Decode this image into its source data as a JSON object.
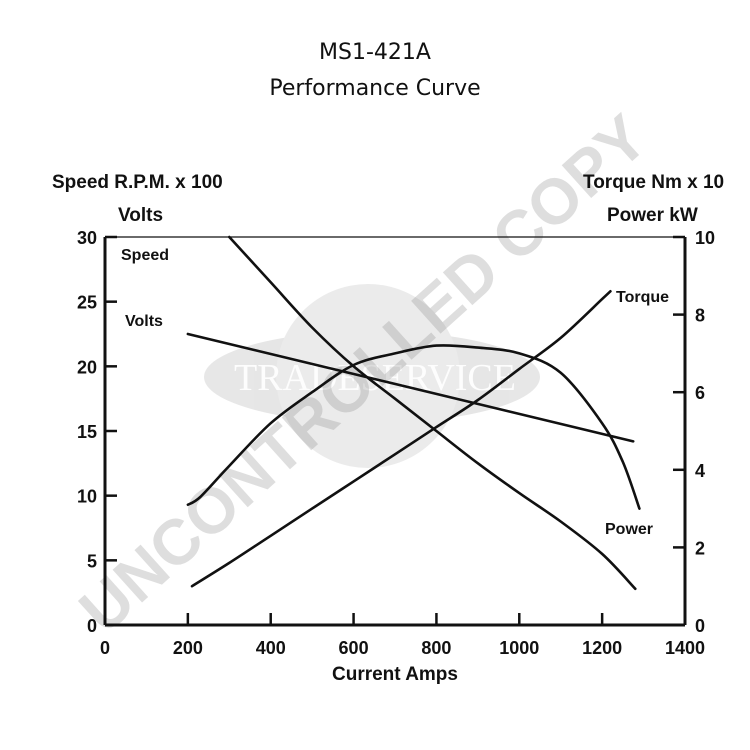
{
  "chart_data": {
    "type": "line",
    "title": "MS1-421A",
    "subtitle": "Performance Curve",
    "xlabel": "Current Amps",
    "xlim": [
      0,
      1400
    ],
    "x_ticks": [
      0,
      200,
      400,
      600,
      800,
      1000,
      1200,
      1400
    ],
    "x_tick_labels": [
      "0",
      "200",
      "400",
      "600",
      "800",
      "1000",
      "1200",
      "1400"
    ],
    "y_left": {
      "labels": [
        "Speed R.P.M. x 100",
        "Volts"
      ],
      "lim": [
        0,
        30
      ],
      "ticks": [
        0,
        5,
        10,
        15,
        20,
        25,
        30
      ]
    },
    "y_right": {
      "labels": [
        "Torque Nm x 10",
        "Power kW"
      ],
      "lim": [
        0,
        10
      ],
      "ticks": [
        0,
        2,
        4,
        6,
        8,
        10
      ]
    },
    "series": [
      {
        "name": "Speed",
        "axis": "left",
        "x": [
          300,
          400,
          500,
          600,
          700,
          800,
          900,
          1000,
          1100,
          1200,
          1280
        ],
        "y": [
          30,
          26.5,
          23,
          20,
          17.5,
          15,
          12.5,
          10.2,
          8,
          5.5,
          2.8
        ]
      },
      {
        "name": "Volts",
        "axis": "left",
        "x": [
          200,
          400,
          600,
          800,
          1000,
          1200,
          1275
        ],
        "y": [
          22.5,
          21,
          19.5,
          18.3,
          16.8,
          15,
          14.2
        ]
      },
      {
        "name": "Torque",
        "axis": "right",
        "x": [
          210,
          300,
          400,
          500,
          600,
          700,
          800,
          900,
          1000,
          1100,
          1200,
          1220
        ],
        "y": [
          1.0,
          1.6,
          2.3,
          3.0,
          3.7,
          4.4,
          5.1,
          5.8,
          6.6,
          7.4,
          8.4,
          8.6
        ]
      },
      {
        "name": "Power",
        "axis": "right",
        "x": [
          200,
          230,
          300,
          400,
          500,
          600,
          700,
          800,
          900,
          1000,
          1100,
          1200,
          1250,
          1290
        ],
        "y": [
          3.1,
          3.3,
          4.1,
          5.2,
          6.0,
          6.7,
          7.0,
          7.2,
          7.15,
          7.0,
          6.5,
          5.2,
          4.2,
          3.0
        ]
      }
    ],
    "series_label_positions": {
      "Speed": "top-left",
      "Volts": "left",
      "Torque": "right-end",
      "Power": "lower-right"
    }
  },
  "watermark": {
    "text": "UNCONTROLLED COPY",
    "logo_text": "TRADESERVICE"
  }
}
